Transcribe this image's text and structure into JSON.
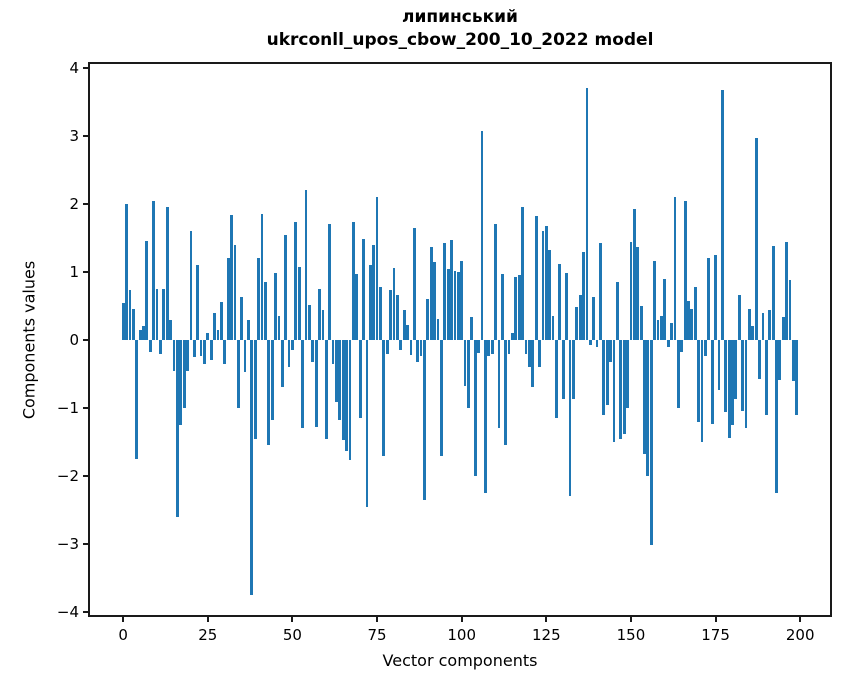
{
  "colors": {
    "bar": "#1f77b4",
    "spine": "#1a1a1a",
    "background": "#ffffff",
    "text": "#000000"
  },
  "chart_data": {
    "type": "bar",
    "title_line1": "липинський",
    "title_line2": "ukrconll_upos_cbow_200_10_2022 model",
    "xlabel": "Vector components",
    "ylabel": "Components values",
    "x_start": 0,
    "x_step": 1,
    "n_bars": 200,
    "xlim": [
      -10.4,
      209.4
    ],
    "ylim": [
      -4.09,
      4.09
    ],
    "grid": false,
    "legend": "none",
    "x_tick_values": [
      0,
      25,
      50,
      75,
      100,
      125,
      150,
      175,
      200
    ],
    "x_tick_labels": [
      "0",
      "25",
      "50",
      "75",
      "100",
      "125",
      "150",
      "175",
      "200"
    ],
    "y_tick_values": [
      4,
      3,
      2,
      1,
      0,
      -1,
      -2,
      -3,
      -4
    ],
    "y_tick_labels": [
      "4",
      "3",
      "2",
      "1",
      "0",
      "−1",
      "−2",
      "−3",
      "−4"
    ],
    "values": [
      0.55,
      2.0,
      0.73,
      0.45,
      -1.75,
      0.15,
      0.2,
      1.45,
      -0.18,
      2.05,
      0.75,
      -0.2,
      0.75,
      1.95,
      0.3,
      -0.45,
      -2.6,
      -1.25,
      -1.0,
      -0.45,
      1.6,
      -0.25,
      1.1,
      -0.23,
      -0.35,
      0.1,
      -0.3,
      0.39,
      0.15,
      0.56,
      -0.35,
      1.2,
      1.84,
      1.4,
      -1.0,
      0.63,
      -0.47,
      0.3,
      -3.75,
      -1.45,
      1.2,
      1.85,
      0.85,
      -1.55,
      -1.18,
      0.98,
      0.36,
      -0.69,
      1.54,
      -0.4,
      -0.15,
      1.73,
      1.07,
      -1.3,
      2.2,
      0.52,
      -0.32,
      -1.28,
      0.75,
      0.44,
      -1.45,
      1.7,
      -0.36,
      -0.91,
      -1.18,
      -1.47,
      -1.63,
      -1.76,
      1.74,
      0.97,
      -1.15,
      1.48,
      -2.45,
      1.1,
      1.4,
      2.1,
      0.78,
      -1.7,
      -0.2,
      0.73,
      1.06,
      0.66,
      -0.15,
      0.44,
      0.22,
      -0.22,
      1.65,
      -0.32,
      -0.23,
      -2.35,
      0.6,
      1.37,
      1.15,
      0.31,
      -1.7,
      1.42,
      1.05,
      1.47,
      1.02,
      1.0,
      1.16,
      -0.67,
      -1.0,
      0.34,
      -2.0,
      -0.19,
      3.08,
      -2.25,
      -0.23,
      -0.2,
      1.7,
      -1.3,
      0.97,
      -1.55,
      -0.2,
      0.1,
      0.93,
      0.95,
      1.95,
      -0.2,
      -0.4,
      -0.69,
      1.83,
      -0.4,
      1.6,
      1.68,
      1.32,
      0.35,
      -1.15,
      1.12,
      -0.87,
      0.98,
      -2.3,
      -0.87,
      0.49,
      0.66,
      1.3,
      3.7,
      -0.07,
      0.63,
      -0.1,
      1.43,
      -1.11,
      -0.96,
      -0.33,
      -1.5,
      0.85,
      -1.45,
      -1.38,
      -1.0,
      1.44,
      1.93,
      1.37,
      0.5,
      -1.68,
      -2.0,
      -3.02,
      1.16,
      0.3,
      0.35,
      0.9,
      -0.1,
      0.25,
      2.1,
      -1.0,
      -0.18,
      2.05,
      0.58,
      0.45,
      0.78,
      -1.2,
      -1.5,
      -0.23,
      1.21,
      -1.23,
      1.25,
      -0.74,
      3.67,
      -1.06,
      -1.44,
      -1.25,
      -0.87,
      0.66,
      -1.05,
      -1.3,
      0.46,
      0.2,
      2.97,
      -0.57,
      0.39,
      -1.1,
      0.44,
      1.38,
      -2.25,
      -0.59,
      0.34,
      1.44,
      0.88,
      -0.6,
      -1.1
    ]
  }
}
